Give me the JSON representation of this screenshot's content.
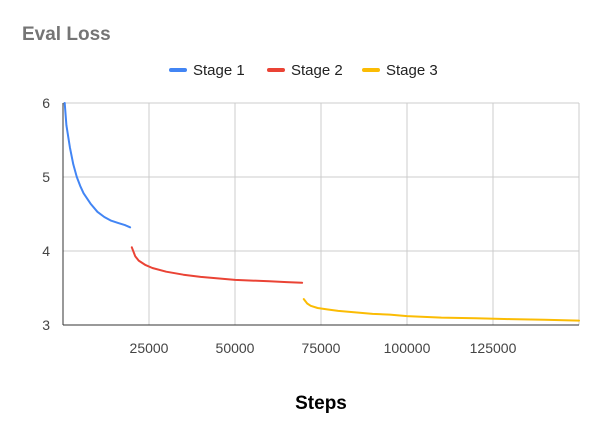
{
  "chart_data": {
    "type": "line",
    "title": "Eval Loss",
    "xlabel": "Steps",
    "ylabel": "",
    "xlim": [
      0,
      150000
    ],
    "ylim": [
      3,
      6
    ],
    "xticks": [
      25000,
      50000,
      75000,
      100000,
      125000
    ],
    "yticks": [
      3,
      4,
      5,
      6
    ],
    "grid": true,
    "legend_position": "top-center",
    "series": [
      {
        "name": "Stage 1",
        "color": "#4285F4",
        "x": [
          500,
          1000,
          2000,
          3000,
          4000,
          5000,
          6000,
          8000,
          10000,
          12000,
          14000,
          16000,
          18000,
          19500
        ],
        "y": [
          6.0,
          5.7,
          5.4,
          5.17,
          5.0,
          4.88,
          4.78,
          4.64,
          4.53,
          4.46,
          4.41,
          4.38,
          4.35,
          4.32
        ]
      },
      {
        "name": "Stage 2",
        "color": "#EA4335",
        "x": [
          20000,
          21000,
          22000,
          24000,
          26000,
          30000,
          35000,
          40000,
          45000,
          50000,
          55000,
          60000,
          65000,
          69500
        ],
        "y": [
          4.05,
          3.93,
          3.87,
          3.81,
          3.77,
          3.72,
          3.68,
          3.65,
          3.63,
          3.61,
          3.6,
          3.59,
          3.58,
          3.57
        ]
      },
      {
        "name": "Stage 3",
        "color": "#FBBC04",
        "x": [
          70000,
          71000,
          72000,
          74000,
          77000,
          80000,
          85000,
          90000,
          95000,
          100000,
          110000,
          120000,
          130000,
          140000,
          150000
        ],
        "y": [
          3.35,
          3.29,
          3.26,
          3.23,
          3.21,
          3.19,
          3.17,
          3.15,
          3.14,
          3.12,
          3.1,
          3.09,
          3.08,
          3.07,
          3.06
        ]
      }
    ]
  }
}
